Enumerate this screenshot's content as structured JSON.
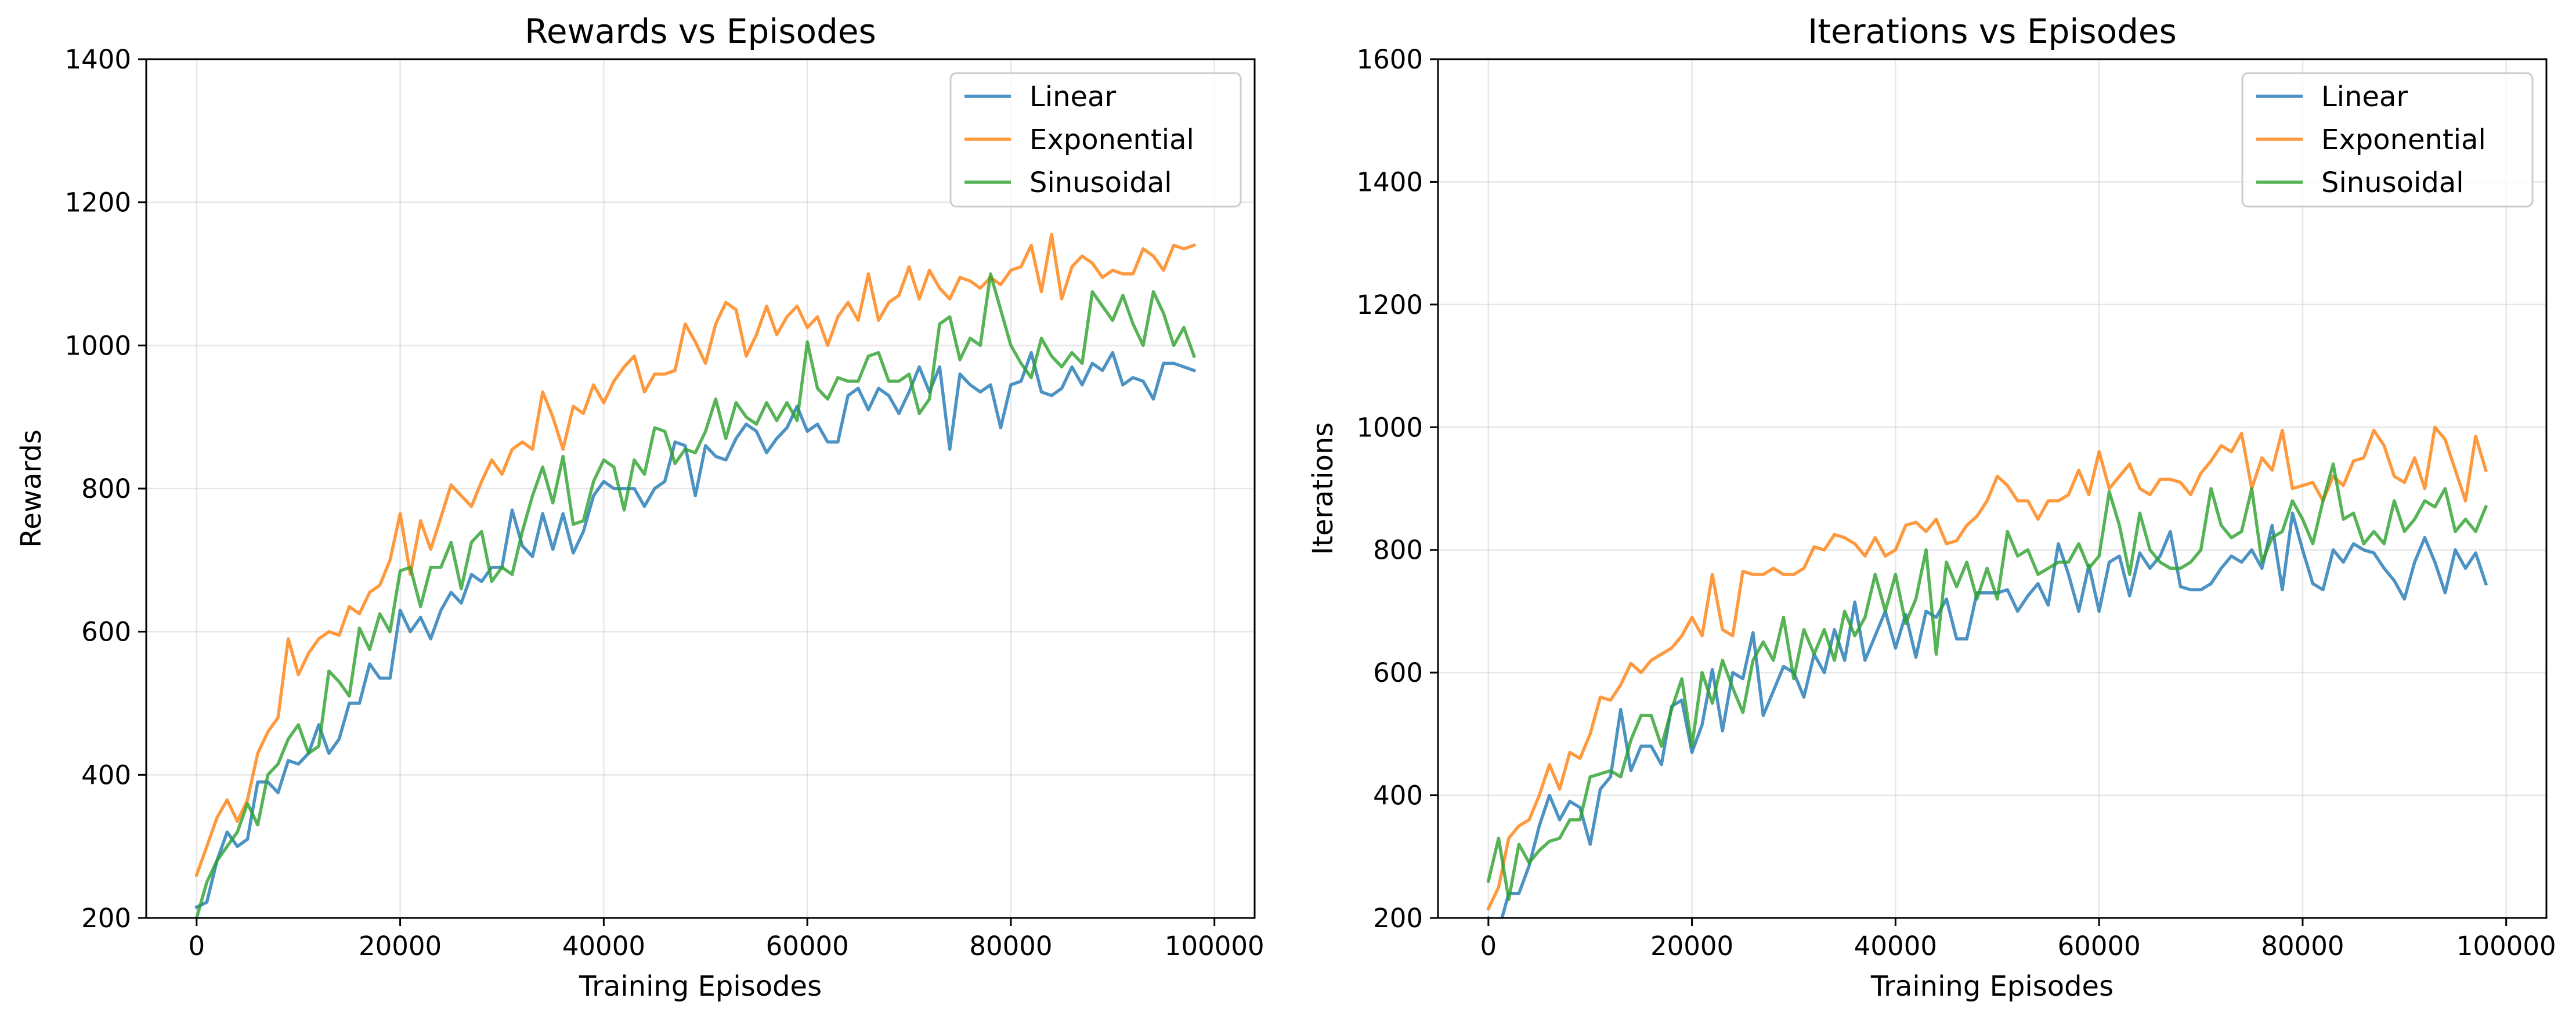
{
  "colors": {
    "Linear": "#1f77b4",
    "Exponential": "#ff7f0e",
    "Sinusoidal": "#2ca02c"
  },
  "chart_data": [
    {
      "type": "line",
      "title": "Rewards vs Episodes",
      "xlabel": "Training Episodes",
      "ylabel": "Rewards",
      "xlim": [
        -4950,
        103950
      ],
      "ylim": [
        200,
        1400
      ],
      "xticks": [
        0,
        20000,
        40000,
        60000,
        80000,
        100000
      ],
      "xtick_labels": [
        "0",
        "20000",
        "40000",
        "60000",
        "80000",
        "100000"
      ],
      "yticks": [
        200,
        400,
        600,
        800,
        1000,
        1200,
        1400
      ],
      "ytick_labels": [
        "200",
        "400",
        "600",
        "800",
        "1000",
        "1200",
        "1400"
      ],
      "grid": true,
      "legend": "top-right",
      "x_start": 0,
      "x_step": 1000,
      "series": [
        {
          "name": "Linear",
          "values": [
            215,
            222,
            280,
            320,
            300,
            310,
            390,
            390,
            375,
            420,
            415,
            430,
            470,
            430,
            450,
            500,
            500,
            555,
            535,
            535,
            630,
            600,
            620,
            590,
            630,
            655,
            640,
            680,
            670,
            690,
            690,
            770,
            720,
            705,
            765,
            715,
            765,
            710,
            740,
            790,
            810,
            800,
            800,
            800,
            775,
            800,
            810,
            865,
            860,
            790,
            860,
            845,
            840,
            870,
            890,
            880,
            850,
            870,
            885,
            915,
            880,
            890,
            865,
            865,
            930,
            940,
            910,
            940,
            930,
            905,
            935,
            970,
            935,
            970,
            855,
            960,
            945,
            935,
            945,
            885,
            945,
            950,
            990,
            935,
            930,
            940,
            970,
            945,
            975,
            965,
            990,
            945,
            955,
            950,
            925,
            975,
            975,
            970,
            965
          ]
        },
        {
          "name": "Exponential",
          "values": [
            260,
            300,
            340,
            365,
            335,
            365,
            430,
            460,
            480,
            590,
            540,
            570,
            590,
            600,
            595,
            635,
            625,
            655,
            665,
            700,
            765,
            680,
            755,
            715,
            760,
            805,
            790,
            775,
            810,
            840,
            820,
            855,
            865,
            855,
            935,
            900,
            855,
            915,
            905,
            945,
            920,
            950,
            970,
            985,
            935,
            960,
            960,
            965,
            1030,
            1005,
            975,
            1030,
            1060,
            1050,
            985,
            1015,
            1055,
            1015,
            1040,
            1055,
            1025,
            1040,
            1000,
            1040,
            1060,
            1035,
            1100,
            1035,
            1060,
            1070,
            1110,
            1065,
            1105,
            1080,
            1065,
            1095,
            1090,
            1080,
            1095,
            1085,
            1105,
            1110,
            1140,
            1075,
            1155,
            1065,
            1110,
            1125,
            1115,
            1095,
            1105,
            1100,
            1100,
            1135,
            1125,
            1105,
            1140,
            1135,
            1140
          ]
        },
        {
          "name": "Sinusoidal",
          "values": [
            200,
            250,
            280,
            300,
            320,
            360,
            330,
            400,
            415,
            450,
            470,
            430,
            440,
            545,
            530,
            510,
            605,
            575,
            625,
            600,
            685,
            690,
            635,
            690,
            690,
            725,
            660,
            725,
            740,
            670,
            690,
            680,
            740,
            790,
            830,
            780,
            845,
            750,
            755,
            810,
            840,
            830,
            770,
            840,
            820,
            885,
            880,
            835,
            855,
            850,
            880,
            925,
            870,
            920,
            900,
            890,
            920,
            895,
            920,
            895,
            1005,
            940,
            925,
            955,
            950,
            950,
            985,
            990,
            950,
            950,
            960,
            905,
            925,
            1030,
            1040,
            980,
            1010,
            1000,
            1100,
            1050,
            1000,
            975,
            955,
            1010,
            985,
            970,
            990,
            975,
            1075,
            1055,
            1035,
            1070,
            1030,
            1000,
            1075,
            1045,
            1000,
            1025,
            985
          ]
        }
      ]
    },
    {
      "type": "line",
      "title": "Iterations vs Episodes",
      "xlabel": "Training Episodes",
      "ylabel": "Iterations",
      "xlim": [
        -4950,
        103950
      ],
      "ylim": [
        200,
        1600
      ],
      "xticks": [
        0,
        20000,
        40000,
        60000,
        80000,
        100000
      ],
      "xtick_labels": [
        "0",
        "20000",
        "40000",
        "60000",
        "80000",
        "100000"
      ],
      "yticks": [
        200,
        400,
        600,
        800,
        1000,
        1200,
        1400,
        1600
      ],
      "ytick_labels": [
        "200",
        "400",
        "600",
        "800",
        "1000",
        "1200",
        "1400",
        "1600"
      ],
      "grid": true,
      "legend": "top-right",
      "x_start": 0,
      "x_step": 1000,
      "series": [
        {
          "name": "Linear",
          "values": [
            200,
            180,
            240,
            240,
            285,
            350,
            400,
            360,
            390,
            380,
            320,
            410,
            430,
            540,
            440,
            480,
            480,
            450,
            545,
            555,
            470,
            515,
            605,
            505,
            600,
            590,
            665,
            530,
            570,
            610,
            600,
            560,
            630,
            600,
            670,
            620,
            715,
            620,
            660,
            700,
            640,
            695,
            625,
            700,
            690,
            720,
            655,
            655,
            730,
            730,
            730,
            735,
            700,
            725,
            745,
            710,
            810,
            760,
            700,
            775,
            700,
            780,
            790,
            725,
            795,
            770,
            790,
            830,
            740,
            735,
            735,
            745,
            770,
            790,
            780,
            800,
            770,
            840,
            735,
            860,
            800,
            745,
            735,
            800,
            780,
            810,
            800,
            795,
            770,
            750,
            720,
            780,
            820,
            780,
            730,
            800,
            770,
            795,
            745
          ]
        },
        {
          "name": "Exponential",
          "values": [
            215,
            250,
            330,
            350,
            360,
            400,
            450,
            410,
            470,
            460,
            500,
            560,
            555,
            580,
            615,
            600,
            620,
            630,
            640,
            660,
            690,
            660,
            760,
            670,
            660,
            765,
            760,
            760,
            770,
            760,
            760,
            770,
            805,
            800,
            825,
            820,
            810,
            790,
            820,
            790,
            800,
            840,
            845,
            830,
            850,
            810,
            815,
            840,
            855,
            880,
            920,
            905,
            880,
            880,
            850,
            880,
            880,
            890,
            930,
            890,
            960,
            900,
            920,
            940,
            900,
            890,
            915,
            915,
            910,
            890,
            925,
            945,
            970,
            960,
            990,
            900,
            950,
            930,
            995,
            900,
            905,
            910,
            880,
            920,
            905,
            945,
            950,
            995,
            970,
            920,
            910,
            950,
            900,
            1000,
            980,
            930,
            880,
            985,
            930
          ]
        },
        {
          "name": "Sinusoidal",
          "values": [
            260,
            330,
            230,
            320,
            290,
            310,
            325,
            330,
            360,
            360,
            430,
            435,
            440,
            430,
            490,
            530,
            530,
            480,
            540,
            590,
            480,
            600,
            550,
            620,
            575,
            535,
            620,
            650,
            620,
            690,
            590,
            670,
            630,
            670,
            620,
            700,
            660,
            690,
            760,
            700,
            760,
            680,
            720,
            800,
            630,
            780,
            740,
            780,
            720,
            770,
            720,
            830,
            790,
            800,
            760,
            770,
            780,
            780,
            810,
            770,
            790,
            895,
            840,
            760,
            860,
            800,
            780,
            770,
            770,
            780,
            800,
            900,
            840,
            820,
            830,
            900,
            780,
            820,
            830,
            880,
            850,
            810,
            880,
            940,
            850,
            860,
            810,
            830,
            810,
            880,
            830,
            850,
            880,
            870,
            900,
            830,
            850,
            830,
            870
          ]
        }
      ]
    }
  ]
}
